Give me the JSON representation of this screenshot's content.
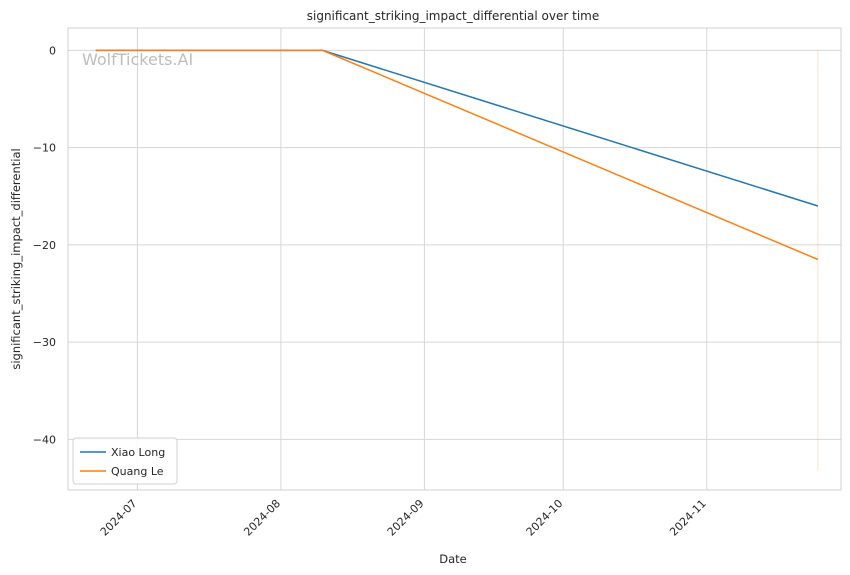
{
  "chart_data": {
    "type": "line",
    "title": "significant_striking_impact_differential over time",
    "xlabel": "Date",
    "ylabel": "significant_striking_impact_differential",
    "x_ticks": [
      "2024-07-01",
      "2024-08-01",
      "2024-09-01",
      "2024-10-01",
      "2024-11-01"
    ],
    "x_tick_labels": [
      "2024-07",
      "2024-08",
      "2024-09",
      "2024-10",
      "2024-11"
    ],
    "xlim": [
      "2024-06-16",
      "2024-11-30"
    ],
    "y_ticks": [
      0,
      -10,
      -20,
      -30,
      -40
    ],
    "y_tick_labels": [
      "0",
      "−10",
      "−20",
      "−30",
      "−40"
    ],
    "ylim": [
      -45.2,
      2.3
    ],
    "grid": true,
    "legend_position": "lower-left",
    "watermark": "WolfTickets.AI",
    "series": [
      {
        "name": "Xiao Long",
        "color": "#1f77b4",
        "points": [
          {
            "x": "2024-06-22",
            "y": 0
          },
          {
            "x": "2024-08-10",
            "y": 0
          },
          {
            "x": "2024-11-25",
            "y": -16.0
          }
        ]
      },
      {
        "name": "Quang Le",
        "color": "#ff7f0e",
        "points": [
          {
            "x": "2024-06-22",
            "y": 0
          },
          {
            "x": "2024-08-10",
            "y": 0
          },
          {
            "x": "2024-11-25",
            "y": -21.5
          }
        ]
      }
    ],
    "vertical_marker": {
      "x": "2024-11-25",
      "y_from": 0,
      "y_to": -43.2,
      "color": "#ff7f0e"
    }
  }
}
